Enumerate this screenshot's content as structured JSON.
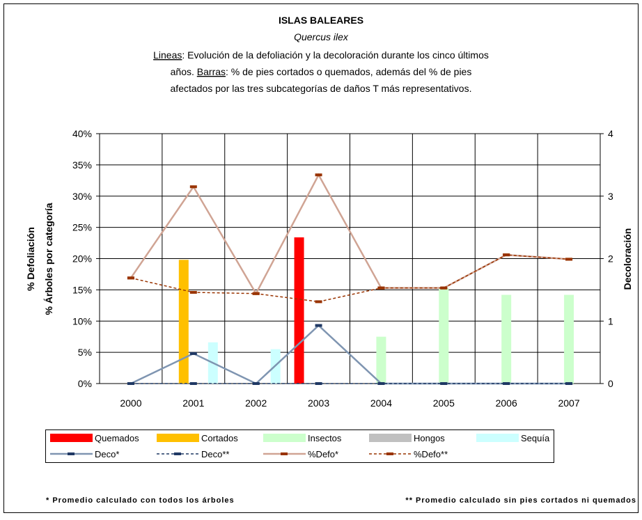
{
  "chart_data": {
    "type": "bar_line",
    "title": "ISLAS BALEARES",
    "subtitle": "Quercus ilex",
    "description": [
      [
        {
          "text": "Lineas",
          "underline": true
        },
        {
          "text": ": Evolución de la defoliación y la decoloración durante los cinco últimos"
        }
      ],
      [
        {
          "text": "años. "
        },
        {
          "text": "Barras",
          "underline": true
        },
        {
          "text": ": % de pies cortados o quemados, además del % de pies"
        }
      ],
      [
        {
          "text": "afectados por las tres subcategorías de daños T más representativos."
        }
      ]
    ],
    "ylabel": [
      "% Defoliación",
      "% Árboles por categoría"
    ],
    "y2label": "Decoloración",
    "categories": [
      "2000",
      "2001",
      "2002",
      "2003",
      "2004",
      "2005",
      "2006",
      "2007"
    ],
    "ylim": [
      0,
      40
    ],
    "yticks": [
      {
        "value": 0,
        "label": "0%"
      },
      {
        "value": 5,
        "label": "5%"
      },
      {
        "value": 10,
        "label": "10%"
      },
      {
        "value": 15,
        "label": "15%"
      },
      {
        "value": 20,
        "label": "20%"
      },
      {
        "value": 25,
        "label": "25%"
      },
      {
        "value": 30,
        "label": "30%"
      },
      {
        "value": 35,
        "label": "35%"
      },
      {
        "value": 40,
        "label": "40%"
      }
    ],
    "y2lim": [
      0,
      4
    ],
    "y2ticks": [
      0,
      1,
      2,
      3,
      4
    ],
    "grid": true,
    "series": [
      {
        "name": "Quemados",
        "kind": "bar",
        "color": "#ff0000",
        "values": [
          null,
          null,
          null,
          23.4,
          null,
          null,
          null,
          null
        ]
      },
      {
        "name": "Cortados",
        "kind": "bar",
        "color": "#ffc000",
        "values": [
          null,
          19.8,
          null,
          null,
          null,
          null,
          null,
          null
        ]
      },
      {
        "name": "Insectos",
        "kind": "bar",
        "color": "#ccffcc",
        "values": [
          null,
          null,
          null,
          null,
          7.5,
          15.3,
          14.2,
          14.2
        ]
      },
      {
        "name": "Hongos",
        "kind": "bar",
        "color": "#c0c0c0",
        "values": [
          null,
          null,
          null,
          null,
          null,
          null,
          null,
          null
        ]
      },
      {
        "name": "Sequía",
        "kind": "bar",
        "color": "#ccffff",
        "values": [
          null,
          6.6,
          5.5,
          null,
          null,
          null,
          null,
          null
        ]
      },
      {
        "name": "Deco*",
        "kind": "line",
        "axis": "y2",
        "color": "#7f95b1",
        "marker_color": "#1f3864",
        "dash": false,
        "values": [
          0,
          0.48,
          0,
          0.93,
          0,
          0,
          0,
          0
        ]
      },
      {
        "name": "Deco**",
        "kind": "line",
        "axis": "y2",
        "color": "#1f3864",
        "marker_color": "#1f3864",
        "dash": true,
        "values": [
          0,
          0,
          0,
          0,
          0,
          0,
          0,
          0
        ]
      },
      {
        "name": "%Defo*",
        "kind": "line",
        "color": "#d0a494",
        "marker_color": "#993300",
        "dash": false,
        "values": [
          16.9,
          31.5,
          14.4,
          33.4,
          15.3,
          15.3,
          20.6,
          19.9
        ]
      },
      {
        "name": "%Defo**",
        "kind": "line",
        "color": "#993300",
        "marker_color": "#993300",
        "dash": true,
        "values": [
          16.9,
          14.6,
          14.4,
          13.1,
          15.3,
          15.3,
          20.6,
          19.9
        ]
      }
    ],
    "footnotes": [
      "* Promedio calculado con todos los árboles",
      "** Promedio calculado sin pies cortados ni quemados"
    ]
  }
}
